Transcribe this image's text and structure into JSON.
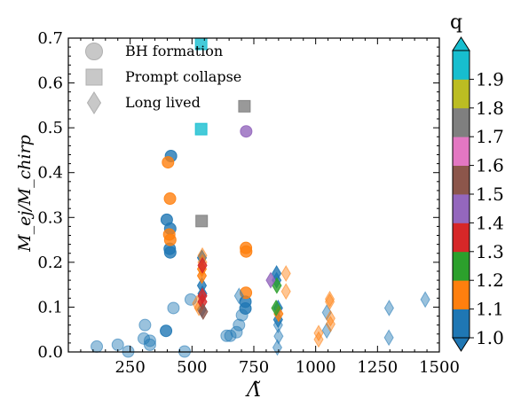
{
  "chart_data": {
    "type": "scatter",
    "xlabel": "Λ̃",
    "ylabel": "M_ej/M_chirp",
    "xlim": [
      0,
      1500
    ],
    "ylim": [
      0,
      0.7
    ],
    "xticks": [
      250,
      500,
      750,
      1000,
      1250,
      1500
    ],
    "xtick_labels": [
      "250",
      "500",
      "750",
      "1000",
      "1250",
      "1500"
    ],
    "yticks": [
      0.0,
      0.1,
      0.2,
      0.3,
      0.4,
      0.5,
      0.6,
      0.7
    ],
    "ytick_labels": [
      "0.0",
      "0.1",
      "0.2",
      "0.3",
      "0.4",
      "0.5",
      "0.6",
      "0.7"
    ],
    "legend": {
      "placement": "top-left",
      "entries": [
        {
          "label": "BH formation",
          "marker": "circle"
        },
        {
          "label": "Prompt collapse",
          "marker": "square"
        },
        {
          "label": "Long lived",
          "marker": "diamond"
        }
      ]
    },
    "colorbar": {
      "title": "q",
      "extend": "both",
      "boundaries": [
        1.0,
        1.1,
        1.2,
        1.3,
        1.4,
        1.5,
        1.6,
        1.7,
        1.8,
        1.9
      ],
      "tick_labels": [
        "1.0",
        "1.1",
        "1.2",
        "1.3",
        "1.4",
        "1.5",
        "1.6",
        "1.7",
        "1.8",
        "1.9"
      ],
      "colors": [
        "#1f77b4",
        "#ff7f0e",
        "#2ca02c",
        "#d62728",
        "#9467bd",
        "#8c564b",
        "#e377c2",
        "#7f7f7f",
        "#bcbd22",
        "#17becf"
      ]
    },
    "points": [
      {
        "x": 115,
        "y": 0.012,
        "q": 1.0,
        "m": "circle",
        "a": 0.45
      },
      {
        "x": 200,
        "y": 0.016,
        "q": 1.0,
        "m": "circle",
        "a": 0.45
      },
      {
        "x": 242,
        "y": 0.001,
        "q": 1.0,
        "m": "circle",
        "a": 0.45
      },
      {
        "x": 305,
        "y": 0.03,
        "q": 1.0,
        "m": "circle",
        "a": 0.45
      },
      {
        "x": 310,
        "y": 0.06,
        "q": 1.0,
        "m": "circle",
        "a": 0.45
      },
      {
        "x": 330,
        "y": 0.025,
        "q": 1.0,
        "m": "circle",
        "a": 0.45
      },
      {
        "x": 330,
        "y": 0.016,
        "q": 1.0,
        "m": "circle",
        "a": 0.45
      },
      {
        "x": 395,
        "y": 0.047,
        "q": 1.0,
        "m": "circle",
        "a": 0.8
      },
      {
        "x": 398,
        "y": 0.295,
        "q": 1.0,
        "m": "circle",
        "a": 0.8
      },
      {
        "x": 410,
        "y": 0.23,
        "q": 1.0,
        "m": "circle",
        "a": 0.8
      },
      {
        "x": 412,
        "y": 0.222,
        "q": 1.0,
        "m": "circle",
        "a": 0.8
      },
      {
        "x": 412,
        "y": 0.275,
        "q": 1.0,
        "m": "circle",
        "a": 0.8
      },
      {
        "x": 415,
        "y": 0.437,
        "q": 1.0,
        "m": "circle",
        "a": 0.8
      },
      {
        "x": 425,
        "y": 0.098,
        "q": 1.0,
        "m": "circle",
        "a": 0.45
      },
      {
        "x": 470,
        "y": 0.001,
        "q": 1.0,
        "m": "circle",
        "a": 0.45
      },
      {
        "x": 495,
        "y": 0.117,
        "q": 1.0,
        "m": "circle",
        "a": 0.45
      },
      {
        "x": 640,
        "y": 0.036,
        "q": 1.0,
        "m": "circle",
        "a": 0.45
      },
      {
        "x": 655,
        "y": 0.036,
        "q": 1.0,
        "m": "circle",
        "a": 0.45
      },
      {
        "x": 680,
        "y": 0.044,
        "q": 1.0,
        "m": "circle",
        "a": 0.45
      },
      {
        "x": 690,
        "y": 0.06,
        "q": 1.0,
        "m": "circle",
        "a": 0.45
      },
      {
        "x": 702,
        "y": 0.082,
        "q": 1.0,
        "m": "circle",
        "a": 0.45
      },
      {
        "x": 716,
        "y": 0.097,
        "q": 1.0,
        "m": "circle",
        "a": 0.8
      },
      {
        "x": 716,
        "y": 0.112,
        "q": 1.0,
        "m": "circle",
        "a": 0.8
      },
      {
        "x": 403,
        "y": 0.423,
        "q": 1.1,
        "m": "circle",
        "a": 0.8
      },
      {
        "x": 411,
        "y": 0.342,
        "q": 1.1,
        "m": "circle",
        "a": 0.8
      },
      {
        "x": 408,
        "y": 0.262,
        "q": 1.1,
        "m": "circle",
        "a": 0.8
      },
      {
        "x": 412,
        "y": 0.25,
        "q": 1.1,
        "m": "circle",
        "a": 0.8
      },
      {
        "x": 718,
        "y": 0.232,
        "q": 1.1,
        "m": "circle",
        "a": 0.8
      },
      {
        "x": 719,
        "y": 0.224,
        "q": 1.1,
        "m": "circle",
        "a": 0.8
      },
      {
        "x": 718,
        "y": 0.132,
        "q": 1.1,
        "m": "circle",
        "a": 0.8
      },
      {
        "x": 719,
        "y": 0.492,
        "q": 1.4,
        "m": "circle",
        "a": 0.8
      },
      {
        "x": 537,
        "y": 0.687,
        "q": 1.9,
        "m": "square",
        "a": 0.8
      },
      {
        "x": 537,
        "y": 0.497,
        "q": 1.9,
        "m": "square",
        "a": 0.8
      },
      {
        "x": 539,
        "y": 0.292,
        "q": 1.7,
        "m": "square",
        "a": 0.8
      },
      {
        "x": 712,
        "y": 0.548,
        "q": 1.7,
        "m": "square",
        "a": 0.8
      },
      {
        "x": 540,
        "y": 0.21,
        "q": 1.0,
        "m": "diamond",
        "a": 0.8
      },
      {
        "x": 540,
        "y": 0.095,
        "q": 1.0,
        "m": "diamond",
        "a": 0.8
      },
      {
        "x": 540,
        "y": 0.148,
        "q": 1.0,
        "m": "diamond",
        "a": 0.8
      },
      {
        "x": 542,
        "y": 0.13,
        "q": 1.0,
        "m": "diamond",
        "a": 0.8
      },
      {
        "x": 842,
        "y": 0.175,
        "q": 1.0,
        "m": "diamond",
        "a": 0.8
      },
      {
        "x": 842,
        "y": 0.16,
        "q": 1.0,
        "m": "diamond",
        "a": 0.8
      },
      {
        "x": 848,
        "y": 0.098,
        "q": 1.0,
        "m": "diamond",
        "a": 0.8
      },
      {
        "x": 848,
        "y": 0.072,
        "q": 1.0,
        "m": "diamond",
        "a": 0.8
      },
      {
        "x": 848,
        "y": 0.06,
        "q": 1.0,
        "m": "diamond",
        "a": 0.45
      },
      {
        "x": 850,
        "y": 0.035,
        "q": 1.0,
        "m": "diamond",
        "a": 0.45
      },
      {
        "x": 845,
        "y": 0.01,
        "q": 1.0,
        "m": "diamond",
        "a": 0.45
      },
      {
        "x": 690,
        "y": 0.125,
        "q": 1.0,
        "m": "diamond",
        "a": 0.45
      },
      {
        "x": 1045,
        "y": 0.088,
        "q": 1.0,
        "m": "diamond",
        "a": 0.45
      },
      {
        "x": 1045,
        "y": 0.048,
        "q": 1.0,
        "m": "diamond",
        "a": 0.45
      },
      {
        "x": 1297,
        "y": 0.098,
        "q": 1.0,
        "m": "diamond",
        "a": 0.45
      },
      {
        "x": 1296,
        "y": 0.032,
        "q": 1.0,
        "m": "diamond",
        "a": 0.45
      },
      {
        "x": 1443,
        "y": 0.117,
        "q": 1.0,
        "m": "diamond",
        "a": 0.45
      },
      {
        "x": 520,
        "y": 0.108,
        "q": 1.1,
        "m": "diamond",
        "a": 0.45
      },
      {
        "x": 528,
        "y": 0.098,
        "q": 1.1,
        "m": "diamond",
        "a": 0.45
      },
      {
        "x": 542,
        "y": 0.215,
        "q": 1.1,
        "m": "diamond",
        "a": 0.45
      },
      {
        "x": 542,
        "y": 0.2,
        "q": 1.1,
        "m": "diamond",
        "a": 0.45
      },
      {
        "x": 540,
        "y": 0.185,
        "q": 1.1,
        "m": "diamond",
        "a": 0.8
      },
      {
        "x": 540,
        "y": 0.17,
        "q": 1.1,
        "m": "diamond",
        "a": 0.8
      },
      {
        "x": 880,
        "y": 0.175,
        "q": 1.1,
        "m": "diamond",
        "a": 0.45
      },
      {
        "x": 880,
        "y": 0.135,
        "q": 1.1,
        "m": "diamond",
        "a": 0.45
      },
      {
        "x": 850,
        "y": 0.085,
        "q": 1.1,
        "m": "diamond",
        "a": 0.8
      },
      {
        "x": 1012,
        "y": 0.042,
        "q": 1.1,
        "m": "diamond",
        "a": 0.45
      },
      {
        "x": 1012,
        "y": 0.028,
        "q": 1.1,
        "m": "diamond",
        "a": 0.45
      },
      {
        "x": 1057,
        "y": 0.118,
        "q": 1.1,
        "m": "diamond",
        "a": 0.45
      },
      {
        "x": 1057,
        "y": 0.112,
        "q": 1.1,
        "m": "diamond",
        "a": 0.45
      },
      {
        "x": 1060,
        "y": 0.075,
        "q": 1.1,
        "m": "diamond",
        "a": 0.45
      },
      {
        "x": 1060,
        "y": 0.062,
        "q": 1.1,
        "m": "diamond",
        "a": 0.45
      },
      {
        "x": 840,
        "y": 0.098,
        "q": 1.2,
        "m": "diamond",
        "a": 0.8
      },
      {
        "x": 843,
        "y": 0.148,
        "q": 1.2,
        "m": "diamond",
        "a": 0.8
      },
      {
        "x": 542,
        "y": 0.193,
        "q": 1.3,
        "m": "diamond",
        "a": 0.8
      },
      {
        "x": 542,
        "y": 0.125,
        "q": 1.3,
        "m": "diamond",
        "a": 0.8
      },
      {
        "x": 542,
        "y": 0.112,
        "q": 1.3,
        "m": "diamond",
        "a": 0.8
      },
      {
        "x": 818,
        "y": 0.16,
        "q": 1.4,
        "m": "diamond",
        "a": 0.8
      },
      {
        "x": 545,
        "y": 0.09,
        "q": 1.5,
        "m": "diamond",
        "a": 0.8
      }
    ]
  }
}
